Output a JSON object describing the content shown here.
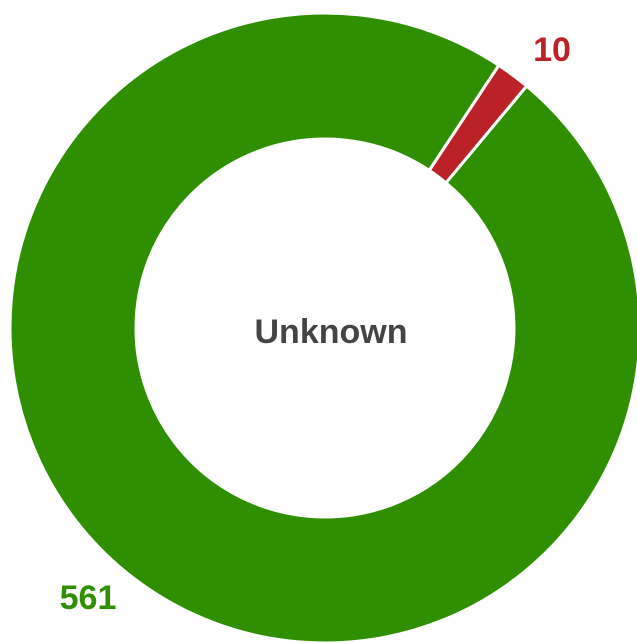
{
  "chart_data": {
    "type": "donut",
    "center_label": "Unknown",
    "values": [
      561,
      10
    ],
    "colors": [
      "#2f8f00",
      "#bb2228"
    ]
  }
}
